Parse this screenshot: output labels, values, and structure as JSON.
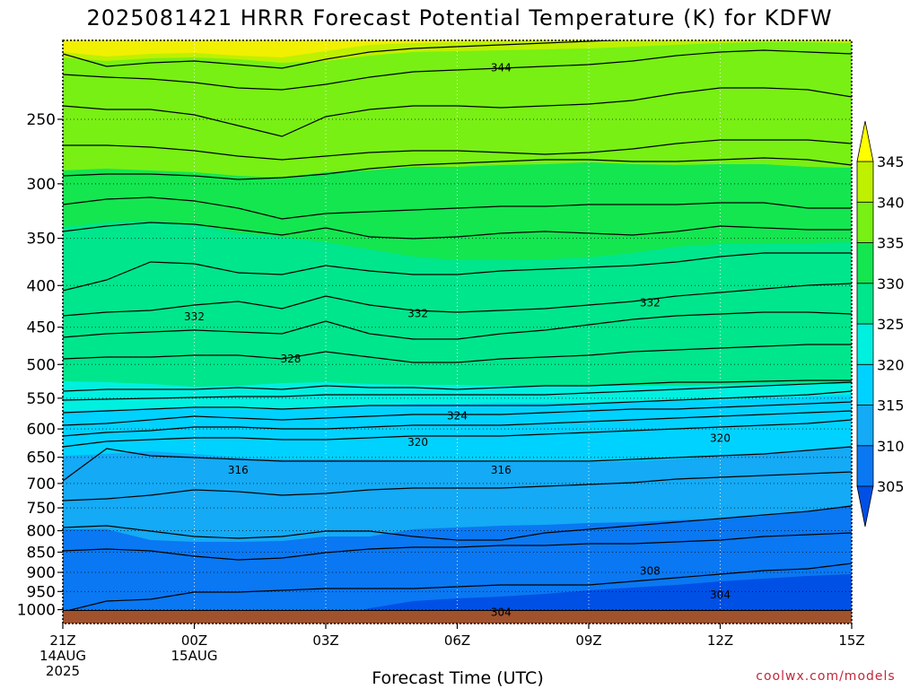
{
  "chart_data": {
    "type": "heatmap",
    "title": "2025081421 HRRR Forecast Potential Temperature (K) for KDFW",
    "xlabel": "Forecast Time (UTC)",
    "ylabel": "",
    "x_ticks": [
      {
        "label": "21Z",
        "sub1": "14AUG",
        "sub2": "2025",
        "hour": 0
      },
      {
        "label": "00Z",
        "sub1": "15AUG",
        "sub2": "",
        "hour": 3
      },
      {
        "label": "03Z",
        "sub1": "",
        "sub2": "",
        "hour": 6
      },
      {
        "label": "06Z",
        "sub1": "",
        "sub2": "",
        "hour": 9
      },
      {
        "label": "09Z",
        "sub1": "",
        "sub2": "",
        "hour": 12
      },
      {
        "label": "12Z",
        "sub1": "",
        "sub2": "",
        "hour": 15
      },
      {
        "label": "15Z",
        "sub1": "",
        "sub2": "",
        "hour": 18
      }
    ],
    "xlim": [
      0,
      18
    ],
    "y_ticks": [
      250,
      300,
      350,
      400,
      450,
      500,
      550,
      600,
      650,
      700,
      750,
      800,
      850,
      900,
      950,
      1000
    ],
    "ylim": [
      200,
      1040
    ],
    "y_scale": "log",
    "y_reversed": true,
    "grid": true,
    "colorbar": {
      "levels": [
        305,
        310,
        315,
        320,
        325,
        330,
        335,
        340,
        345
      ],
      "colors": [
        "#0050e6",
        "#0a78f2",
        "#14aaf5",
        "#00d2ff",
        "#00f0e0",
        "#00e68c",
        "#14e650",
        "#78f014",
        "#bef000",
        "#f0f000",
        "#ffff00"
      ],
      "extend": "both"
    },
    "contour_labels": [
      {
        "text": "344",
        "hour": 10.0,
        "p": 216
      },
      {
        "text": "332",
        "hour": 3.0,
        "p": 437
      },
      {
        "text": "332",
        "hour": 8.1,
        "p": 433
      },
      {
        "text": "332",
        "hour": 13.4,
        "p": 420
      },
      {
        "text": "328",
        "hour": 5.2,
        "p": 492
      },
      {
        "text": "324",
        "hour": 9.0,
        "p": 578
      },
      {
        "text": "320",
        "hour": 8.1,
        "p": 623
      },
      {
        "text": "320",
        "hour": 15.0,
        "p": 616
      },
      {
        "text": "316",
        "hour": 4.0,
        "p": 674
      },
      {
        "text": "316",
        "hour": 10.0,
        "p": 674
      },
      {
        "text": "308",
        "hour": 13.4,
        "p": 897
      },
      {
        "text": "304",
        "hour": 15.0,
        "p": 959
      },
      {
        "text": "304",
        "hour": 10.0,
        "p": 1008
      }
    ],
    "surface_color": "#a0522d"
  },
  "credit": "coolwx.com/models"
}
